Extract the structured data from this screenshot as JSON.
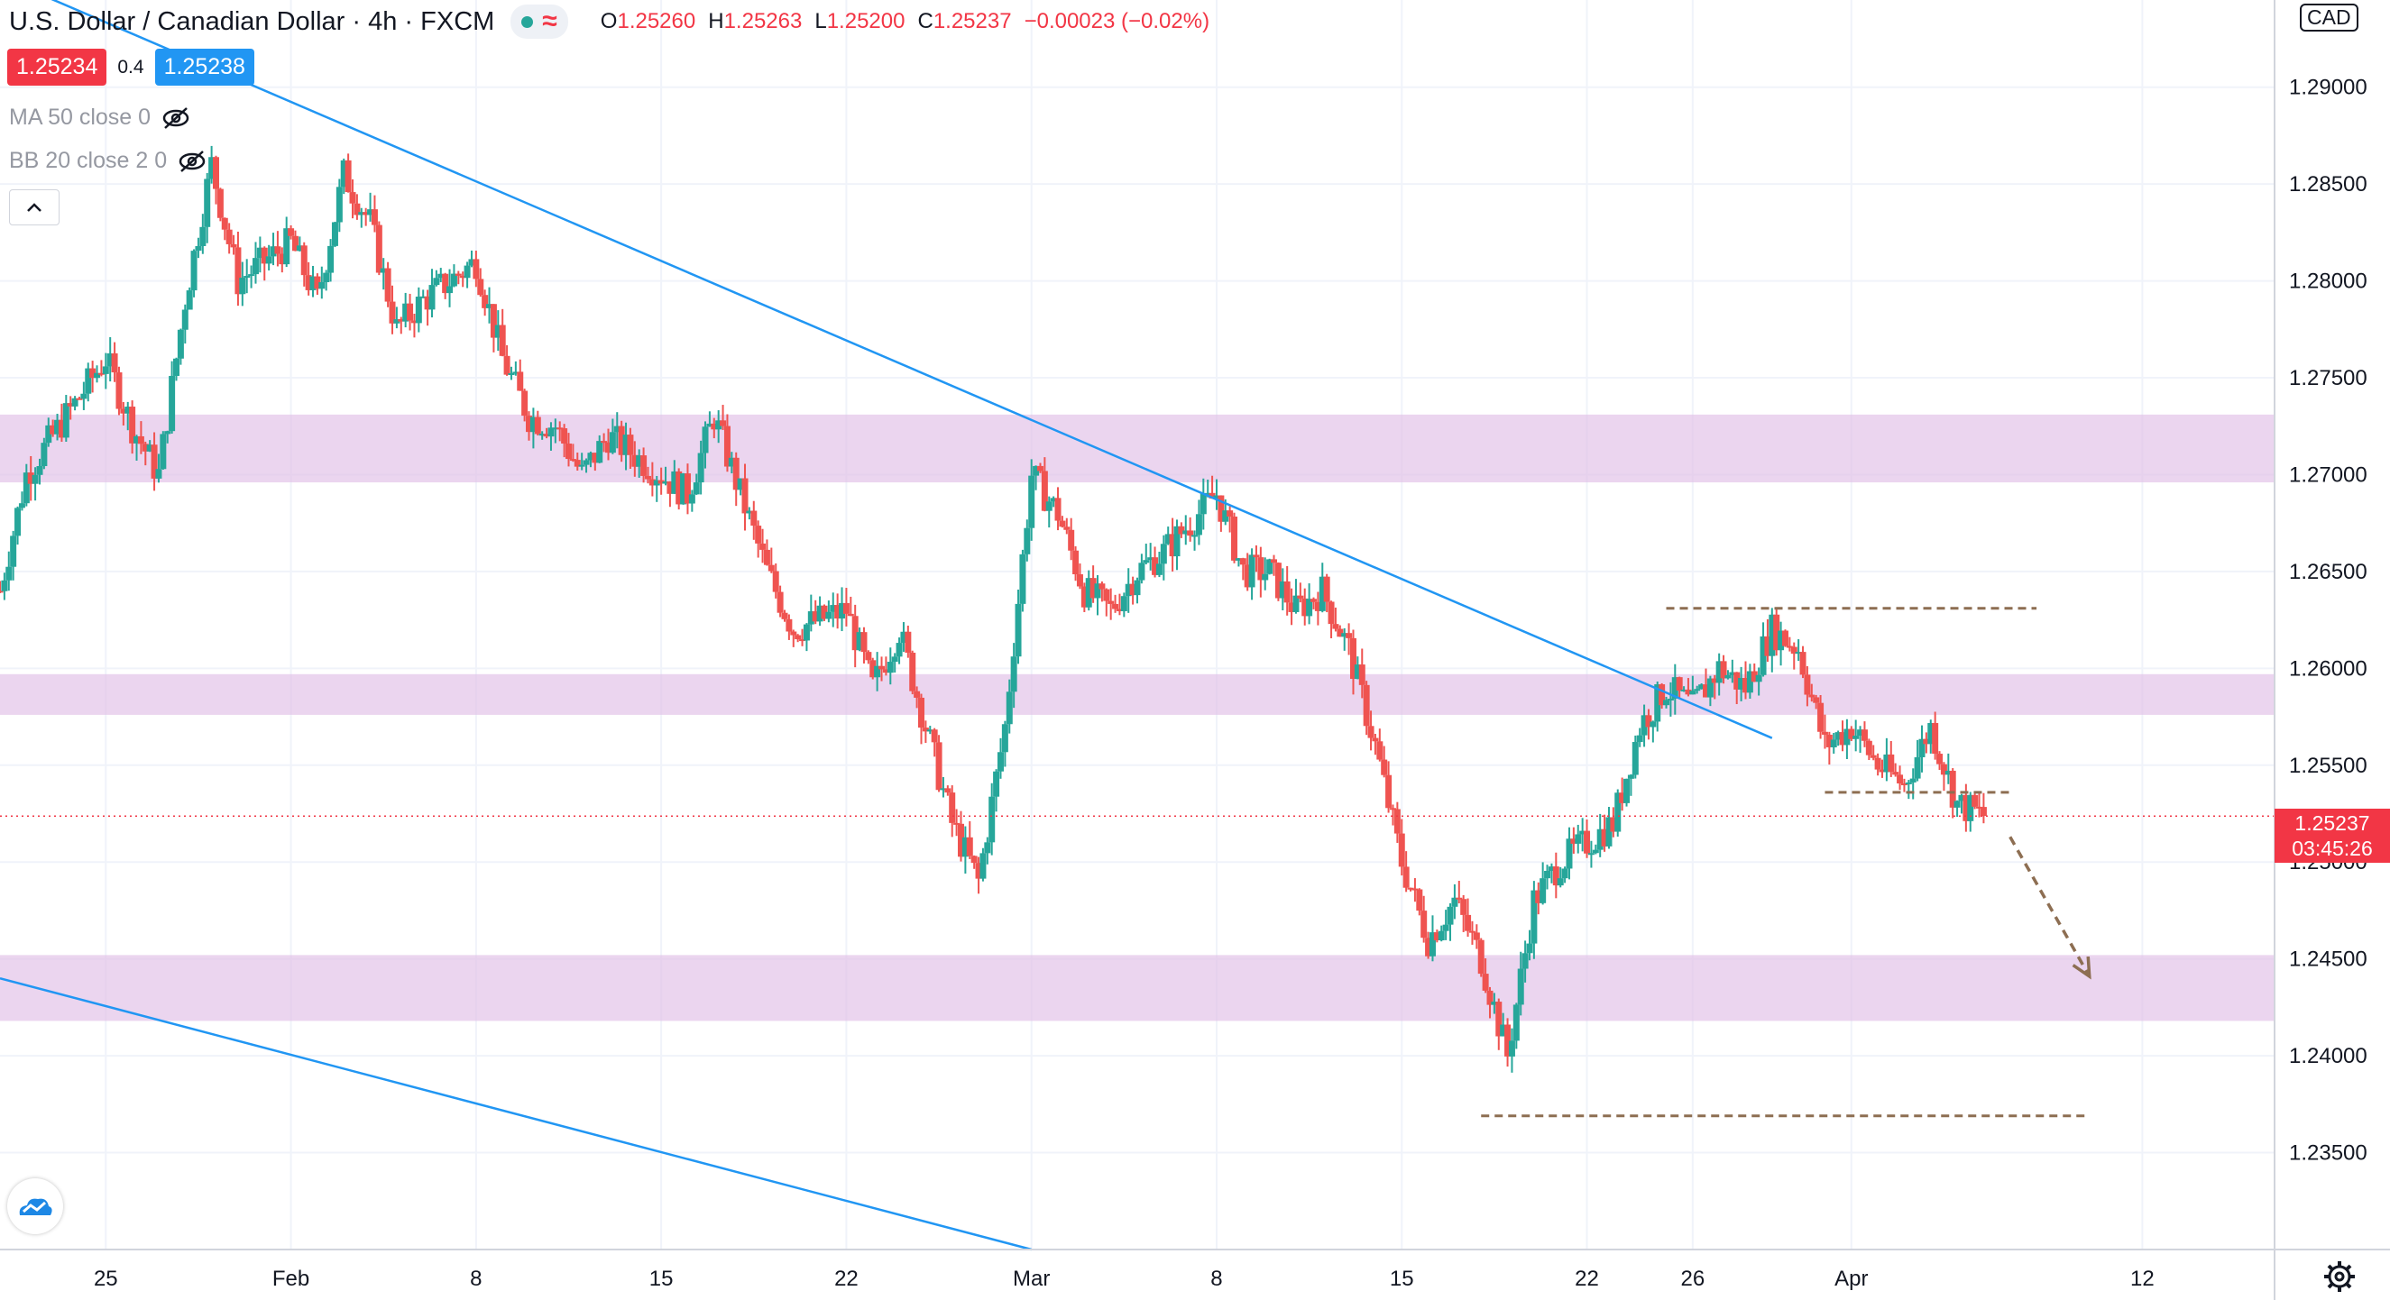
{
  "header": {
    "symbol_title": "U.S. Dollar / Canadian Dollar",
    "interval": "4h",
    "exchange": "FXCM",
    "status_icons": [
      "market-open-dot-icon",
      "data-wave-icon"
    ],
    "ohlc": {
      "o_label": "O",
      "o": "1.25260",
      "h_label": "H",
      "h": "1.25263",
      "l_label": "L",
      "l": "1.25200",
      "c_label": "C",
      "c": "1.25237",
      "change": "−0.00023 (−0.02%)"
    },
    "bid": "1.25234",
    "spread": "0.4",
    "ask": "1.25238"
  },
  "indicators": [
    {
      "label": "MA 50 close 0",
      "icon": "eye-crossed-icon"
    },
    {
      "label": "BB 20 close 2 0",
      "icon": "eye-crossed-icon"
    }
  ],
  "price_axis": {
    "currency": "CAD",
    "last_price": "1.25237",
    "countdown": "03:45:26"
  },
  "colors": {
    "up": "#26a69a",
    "down": "#ef5350",
    "trendline": "#2196f3",
    "zone": "#e1bee7",
    "annotation": "#8d6e52",
    "last_price": "#f23645"
  },
  "chart_data": {
    "type": "candlestick",
    "title": "U.S. Dollar / Canadian Dollar",
    "interval": "4h",
    "ylim": [
      1.23,
      1.2945
    ],
    "y_ticks": [
      "1.29000",
      "1.28500",
      "1.28000",
      "1.27500",
      "1.27000",
      "1.26500",
      "1.26000",
      "1.25500",
      "1.25000",
      "1.24500",
      "1.24000",
      "1.23500"
    ],
    "x_ticks": [
      "25",
      "Feb",
      "8",
      "15",
      "22",
      "Mar",
      "8",
      "15",
      "22",
      "26",
      "Apr",
      "12"
    ],
    "x_tick_dates": [
      "2021-01-25",
      "2021-02-01",
      "2021-02-08",
      "2021-02-15",
      "2021-02-22",
      "2021-03-01",
      "2021-03-08",
      "2021-03-15",
      "2021-03-22",
      "2021-03-26",
      "2021-04-01",
      "2021-04-12"
    ],
    "x_range": [
      "2021-01-21",
      "2021-04-17"
    ],
    "price_path": [
      [
        "2021-01-21",
        1.264
      ],
      [
        "2021-01-22",
        1.27
      ],
      [
        "2021-01-25",
        1.276
      ],
      [
        "2021-01-26",
        1.2725
      ],
      [
        "2021-01-27",
        1.27
      ],
      [
        "2021-01-28",
        1.279
      ],
      [
        "2021-01-29",
        1.286
      ],
      [
        "2021-01-30",
        1.28
      ],
      [
        "2021-02-01",
        1.282
      ],
      [
        "2021-02-02",
        1.279
      ],
      [
        "2021-02-03",
        1.2855
      ],
      [
        "2021-02-04",
        1.283
      ],
      [
        "2021-02-05",
        1.2775
      ],
      [
        "2021-02-06",
        1.279
      ],
      [
        "2021-02-08",
        1.281
      ],
      [
        "2021-02-09",
        1.276
      ],
      [
        "2021-02-10",
        1.273
      ],
      [
        "2021-02-11",
        1.2725
      ],
      [
        "2021-02-12",
        1.27
      ],
      [
        "2021-02-13",
        1.272
      ],
      [
        "2021-02-15",
        1.27
      ],
      [
        "2021-02-16",
        1.269
      ],
      [
        "2021-02-17",
        1.273
      ],
      [
        "2021-02-18",
        1.269
      ],
      [
        "2021-02-19",
        1.265
      ],
      [
        "2021-02-20",
        1.262
      ],
      [
        "2021-02-22",
        1.263
      ],
      [
        "2021-02-23",
        1.259
      ],
      [
        "2021-02-24",
        1.262
      ],
      [
        "2021-02-25",
        1.257
      ],
      [
        "2021-02-26",
        1.252
      ],
      [
        "2021-02-27",
        1.249
      ],
      [
        "2021-02-28",
        1.257
      ],
      [
        "2021-03-01",
        1.27
      ],
      [
        "2021-03-02",
        1.268
      ],
      [
        "2021-03-03",
        1.264
      ],
      [
        "2021-03-04",
        1.263
      ],
      [
        "2021-03-05",
        1.265
      ],
      [
        "2021-03-06",
        1.266
      ],
      [
        "2021-03-08",
        1.269
      ],
      [
        "2021-03-09",
        1.265
      ],
      [
        "2021-03-10",
        1.265
      ],
      [
        "2021-03-11",
        1.263
      ],
      [
        "2021-03-12",
        1.264
      ],
      [
        "2021-03-13",
        1.261
      ],
      [
        "2021-03-14",
        1.256
      ],
      [
        "2021-03-15",
        1.25
      ],
      [
        "2021-03-16",
        1.246
      ],
      [
        "2021-03-17",
        1.248
      ],
      [
        "2021-03-18",
        1.245
      ],
      [
        "2021-03-19",
        1.24
      ],
      [
        "2021-03-20",
        1.248
      ],
      [
        "2021-03-21",
        1.25
      ],
      [
        "2021-03-22",
        1.251
      ],
      [
        "2021-03-23",
        1.252
      ],
      [
        "2021-03-24",
        1.257
      ],
      [
        "2021-03-25",
        1.259
      ],
      [
        "2021-03-26",
        1.258
      ],
      [
        "2021-03-27",
        1.26
      ],
      [
        "2021-03-28",
        1.259
      ],
      [
        "2021-03-29",
        1.262
      ],
      [
        "2021-03-30",
        1.261
      ],
      [
        "2021-03-31",
        1.256
      ],
      [
        "2021-04-01",
        1.257
      ],
      [
        "2021-04-02",
        1.255
      ],
      [
        "2021-04-03",
        1.254
      ],
      [
        "2021-04-04",
        1.257
      ],
      [
        "2021-04-05",
        1.253
      ],
      [
        "2021-04-06",
        1.2524
      ]
    ],
    "series": [
      {
        "name": "",
        "kind": "trendline",
        "points": [
          [
            "2021-01-29",
            1.291
          ],
          [
            "2021-03-29",
            1.2564
          ]
        ]
      },
      {
        "name": "",
        "kind": "trendline",
        "points": [
          [
            "2021-01-21",
            1.244
          ],
          [
            "2021-03-01",
            1.23
          ]
        ]
      }
    ],
    "zones": [
      {
        "low": 1.2696,
        "high": 1.2731
      },
      {
        "low": 1.2576,
        "high": 1.2597
      },
      {
        "low": 1.2418,
        "high": 1.2452
      }
    ],
    "levels": [
      {
        "start": "2021-03-25",
        "end": "2021-04-08",
        "y": 1.2631
      },
      {
        "start": "2021-03-31",
        "end": "2021-04-07",
        "y": 1.2536
      },
      {
        "start": "2021-03-18",
        "end": "2021-04-10",
        "y": 1.2369
      }
    ],
    "projection": {
      "start": [
        "2021-04-07",
        1.2513
      ],
      "end": [
        "2021-04-10",
        1.2441
      ]
    },
    "last_price": 1.25237,
    "legend": "none",
    "grid": true
  }
}
